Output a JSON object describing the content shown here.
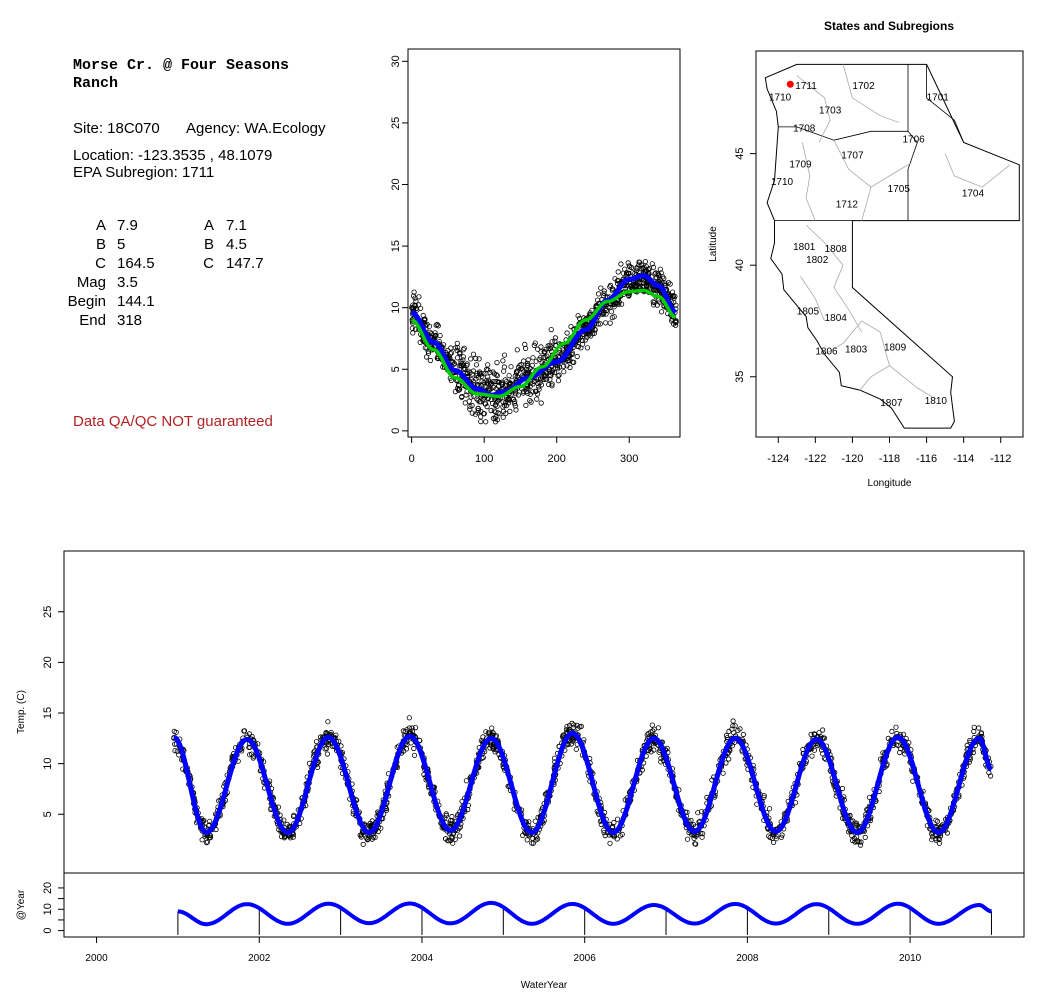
{
  "site_info": {
    "title_line1": "Morse Cr. @ Four Seasons",
    "title_line2": "Ranch",
    "site_label": "Site: 18C070",
    "agency_label": "Agency: WA.Ecology",
    "location_label": "Location: -123.3535 , 48.1079",
    "subregion_label": "EPA Subregion: 1711",
    "params_left": [
      {
        "label": "A",
        "value": "7.9"
      },
      {
        "label": "B",
        "value": "5"
      },
      {
        "label": "C",
        "value": "164.5"
      },
      {
        "label": "Mag",
        "value": "3.5"
      },
      {
        "label": "Begin",
        "value": "144.1"
      },
      {
        "label": "End",
        "value": "318"
      }
    ],
    "params_right": [
      {
        "label": "A",
        "value": "7.1"
      },
      {
        "label": "B",
        "value": "4.5"
      },
      {
        "label": "C",
        "value": "147.7"
      }
    ],
    "qa_note": "Data QA/QC NOT guaranteed",
    "qa_color": "#b22222"
  },
  "chart_data": [
    {
      "type": "scatter",
      "title": "",
      "xlabel": "",
      "ylabel": "",
      "xlim": [
        -5,
        370
      ],
      "ylim": [
        -0.5,
        31
      ],
      "xticks": [
        0,
        100,
        200,
        300
      ],
      "yticks": [
        0,
        5,
        10,
        15,
        20,
        25,
        30
      ],
      "points_description_free": true,
      "series": [
        {
          "color": "#0000ff",
          "style": "line",
          "x": [
            0,
            30,
            60,
            90,
            110,
            130,
            160,
            200,
            240,
            270,
            300,
            320,
            340,
            365
          ],
          "y": [
            9.6,
            7.2,
            4.9,
            3.4,
            2.9,
            3.2,
            4.3,
            5.6,
            8.2,
            10.6,
            12.3,
            12.6,
            11.8,
            9.6
          ]
        },
        {
          "color": "#00cc00",
          "style": "line",
          "x": [
            0,
            30,
            60,
            90,
            120,
            150,
            180,
            210,
            240,
            270,
            300,
            320,
            340,
            365
          ],
          "y": [
            9.0,
            6.6,
            4.3,
            3.0,
            2.8,
            3.6,
            5.2,
            7.1,
            9.0,
            10.5,
            11.3,
            11.4,
            10.9,
            9.2
          ]
        }
      ]
    },
    {
      "type": "map",
      "title": "States and Subregions",
      "xlabel": "Longitude",
      "ylabel": "Latitude",
      "xlim": [
        -125.2,
        -110.8
      ],
      "ylim": [
        32.3,
        49.6
      ],
      "xticks": [
        -124,
        -122,
        -120,
        -118,
        -116,
        -114,
        -112
      ],
      "yticks": [
        35,
        40,
        45
      ],
      "site_point": {
        "lon": -123.35,
        "lat": 48.11,
        "color": "#ff0000"
      },
      "regions": [
        {
          "label": "1702",
          "lon": -119.4,
          "lat": 48.0
        },
        {
          "label": "1701",
          "lon": -115.4,
          "lat": 47.5
        },
        {
          "label": "1711",
          "lon": -122.5,
          "lat": 48.0
        },
        {
          "label": "1710",
          "lon": -123.9,
          "lat": 47.5
        },
        {
          "label": "1703",
          "lon": -121.2,
          "lat": 46.9
        },
        {
          "label": "1708",
          "lon": -122.6,
          "lat": 46.1
        },
        {
          "label": "1706",
          "lon": -116.7,
          "lat": 45.6
        },
        {
          "label": "1707",
          "lon": -120.0,
          "lat": 44.9
        },
        {
          "label": "1709",
          "lon": -122.8,
          "lat": 44.5
        },
        {
          "label": "1710",
          "lon": -123.8,
          "lat": 43.7
        },
        {
          "label": "1705",
          "lon": -117.5,
          "lat": 43.4
        },
        {
          "label": "1704",
          "lon": -113.5,
          "lat": 43.2
        },
        {
          "label": "1712",
          "lon": -120.3,
          "lat": 42.7
        },
        {
          "label": "1801",
          "lon": -122.6,
          "lat": 40.8
        },
        {
          "label": "1808",
          "lon": -120.9,
          "lat": 40.7
        },
        {
          "label": "1802",
          "lon": -121.9,
          "lat": 40.2
        },
        {
          "label": "1805",
          "lon": -122.4,
          "lat": 37.9
        },
        {
          "label": "1804",
          "lon": -120.9,
          "lat": 37.6
        },
        {
          "label": "1806",
          "lon": -121.4,
          "lat": 36.1
        },
        {
          "label": "1803",
          "lon": -119.8,
          "lat": 36.2
        },
        {
          "label": "1809",
          "lon": -117.7,
          "lat": 36.3
        },
        {
          "label": "1810",
          "lon": -115.5,
          "lat": 33.9
        },
        {
          "label": "1807",
          "lon": -117.9,
          "lat": 33.8
        }
      ]
    },
    {
      "type": "line",
      "title": "",
      "xlabel": "WaterYear",
      "ylabel": "Temp. (C)",
      "xlim": [
        1999.6,
        2011.4
      ],
      "ylim": [
        -0.8,
        31
      ],
      "xticks": [
        2000,
        2002,
        2004,
        2006,
        2008,
        2010
      ],
      "yticks": [
        5,
        10,
        15,
        20,
        25
      ],
      "series": [
        {
          "color": "#0000ff",
          "style": "line",
          "peaks": [
            {
              "x": 2001.85,
              "y": 12.4
            },
            {
              "x": 2002.85,
              "y": 12.6
            },
            {
              "x": 2003.85,
              "y": 12.7
            },
            {
              "x": 2004.85,
              "y": 12.5
            },
            {
              "x": 2005.85,
              "y": 13.0
            },
            {
              "x": 2006.85,
              "y": 12.5
            },
            {
              "x": 2007.85,
              "y": 12.5
            },
            {
              "x": 2008.85,
              "y": 12.4
            },
            {
              "x": 2009.85,
              "y": 12.6
            },
            {
              "x": 2010.85,
              "y": 12.5
            }
          ],
          "troughs": [
            {
              "x": 2001.35,
              "y": 3.2
            },
            {
              "x": 2002.35,
              "y": 3.2
            },
            {
              "x": 2003.35,
              "y": 3.2
            },
            {
              "x": 2004.35,
              "y": 3.4
            },
            {
              "x": 2005.35,
              "y": 3.2
            },
            {
              "x": 2006.35,
              "y": 3.2
            },
            {
              "x": 2007.35,
              "y": 3.3
            },
            {
              "x": 2008.35,
              "y": 3.3
            },
            {
              "x": 2009.35,
              "y": 3.2
            },
            {
              "x": 2010.35,
              "y": 3.2
            }
          ],
          "start": {
            "x": 2000.95,
            "y": 12.6
          },
          "end": {
            "x": 2011.0,
            "y": 9.4
          }
        }
      ]
    },
    {
      "type": "line",
      "title": "",
      "xlabel": "",
      "ylabel": "@Year",
      "xlim": [
        1999.6,
        2011.4
      ],
      "ylim": [
        -3,
        27
      ],
      "yticks": [
        0,
        5,
        10,
        15,
        20
      ],
      "ytick_labels": [
        "0",
        "10",
        "20"
      ],
      "series": [
        {
          "color": "#0000ff",
          "style": "line",
          "peaks": [
            {
              "x": 2001.85,
              "y": 12.4
            },
            {
              "x": 2002.85,
              "y": 12.6
            },
            {
              "x": 2003.85,
              "y": 12.7
            },
            {
              "x": 2004.85,
              "y": 13.0
            },
            {
              "x": 2005.85,
              "y": 12.5
            },
            {
              "x": 2006.85,
              "y": 12.0
            },
            {
              "x": 2007.85,
              "y": 12.5
            },
            {
              "x": 2008.85,
              "y": 12.4
            },
            {
              "x": 2009.85,
              "y": 12.6
            },
            {
              "x": 2010.85,
              "y": 12.0
            }
          ],
          "troughs": [
            {
              "x": 2001.35,
              "y": 3.0
            },
            {
              "x": 2002.35,
              "y": 3.2
            },
            {
              "x": 2003.35,
              "y": 3.5
            },
            {
              "x": 2004.35,
              "y": 3.4
            },
            {
              "x": 2005.35,
              "y": 3.2
            },
            {
              "x": 2006.35,
              "y": 3.2
            },
            {
              "x": 2007.35,
              "y": 3.3
            },
            {
              "x": 2008.35,
              "y": 3.3
            },
            {
              "x": 2009.35,
              "y": 3.2
            },
            {
              "x": 2010.35,
              "y": 3.2
            }
          ],
          "start": {
            "x": 2001.0,
            "y": 9.0
          },
          "end": {
            "x": 2011.0,
            "y": 9.0
          }
        }
      ],
      "year_marks": [
        2001,
        2002,
        2003,
        2004,
        2005,
        2006,
        2007,
        2008,
        2009,
        2010,
        2011
      ]
    }
  ]
}
